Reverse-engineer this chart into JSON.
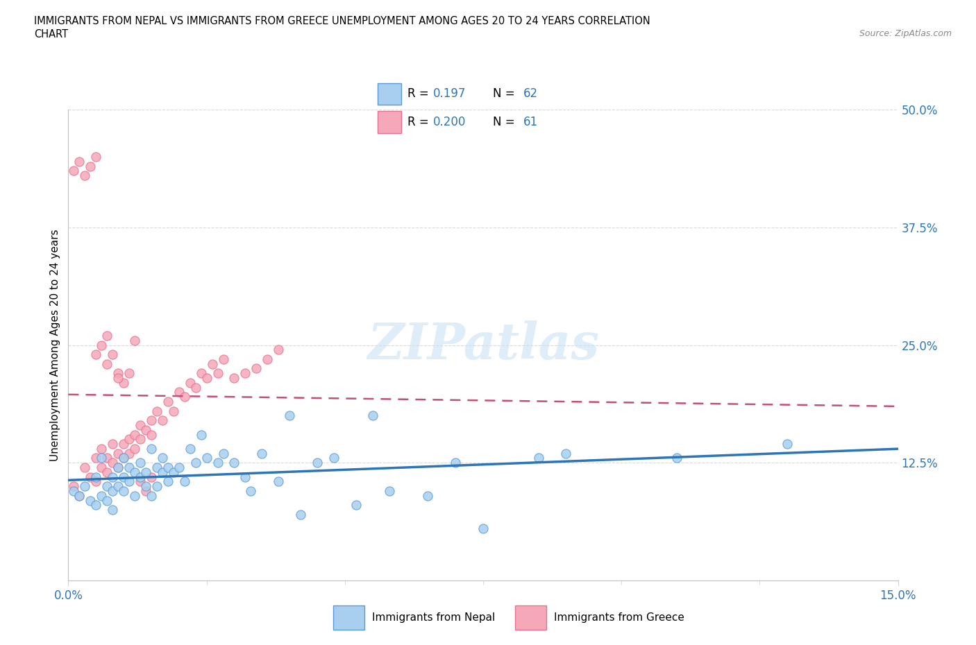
{
  "title_line1": "IMMIGRANTS FROM NEPAL VS IMMIGRANTS FROM GREECE UNEMPLOYMENT AMONG AGES 20 TO 24 YEARS CORRELATION",
  "title_line2": "CHART",
  "source": "Source: ZipAtlas.com",
  "ylabel": "Unemployment Among Ages 20 to 24 years",
  "xlim": [
    0.0,
    0.15
  ],
  "ylim": [
    0.0,
    0.5
  ],
  "yticks": [
    0.0,
    0.125,
    0.25,
    0.375,
    0.5
  ],
  "ytick_labels": [
    "",
    "12.5%",
    "25.0%",
    "37.5%",
    "50.0%"
  ],
  "xtick_labels": [
    "0.0%",
    "15.0%"
  ],
  "nepal_color": "#A8CFEE",
  "greece_color": "#F4A8B8",
  "nepal_edge_color": "#5B9BD5",
  "greece_edge_color": "#E87090",
  "nepal_line_color": "#2E75B6",
  "greece_line_color": "#C0507A",
  "r_n_color": "#2E75B6",
  "legend_R_nepal": "0.197",
  "legend_N_nepal": "62",
  "legend_R_greece": "0.200",
  "legend_N_greece": "61",
  "watermark": "ZIPatlas",
  "nepal_x": [
    0.001,
    0.002,
    0.003,
    0.004,
    0.005,
    0.005,
    0.006,
    0.006,
    0.007,
    0.007,
    0.008,
    0.008,
    0.008,
    0.009,
    0.009,
    0.01,
    0.01,
    0.01,
    0.011,
    0.011,
    0.012,
    0.012,
    0.013,
    0.013,
    0.014,
    0.014,
    0.015,
    0.015,
    0.016,
    0.016,
    0.017,
    0.017,
    0.018,
    0.018,
    0.019,
    0.02,
    0.021,
    0.022,
    0.023,
    0.024,
    0.025,
    0.027,
    0.028,
    0.03,
    0.032,
    0.033,
    0.035,
    0.038,
    0.04,
    0.042,
    0.045,
    0.048,
    0.052,
    0.055,
    0.058,
    0.065,
    0.07,
    0.075,
    0.085,
    0.09,
    0.11,
    0.13
  ],
  "nepal_y": [
    0.095,
    0.09,
    0.1,
    0.085,
    0.08,
    0.11,
    0.09,
    0.13,
    0.1,
    0.085,
    0.095,
    0.11,
    0.075,
    0.12,
    0.1,
    0.095,
    0.11,
    0.13,
    0.105,
    0.12,
    0.09,
    0.115,
    0.11,
    0.125,
    0.1,
    0.115,
    0.09,
    0.14,
    0.1,
    0.12,
    0.115,
    0.13,
    0.105,
    0.12,
    0.115,
    0.12,
    0.105,
    0.14,
    0.125,
    0.155,
    0.13,
    0.125,
    0.135,
    0.125,
    0.11,
    0.095,
    0.135,
    0.105,
    0.175,
    0.07,
    0.125,
    0.13,
    0.08,
    0.175,
    0.095,
    0.09,
    0.125,
    0.055,
    0.13,
    0.135,
    0.13,
    0.145
  ],
  "greece_x": [
    0.001,
    0.002,
    0.003,
    0.004,
    0.005,
    0.005,
    0.006,
    0.006,
    0.007,
    0.007,
    0.008,
    0.008,
    0.009,
    0.009,
    0.01,
    0.01,
    0.011,
    0.011,
    0.012,
    0.012,
    0.013,
    0.013,
    0.014,
    0.015,
    0.015,
    0.016,
    0.017,
    0.018,
    0.019,
    0.02,
    0.021,
    0.022,
    0.023,
    0.024,
    0.025,
    0.026,
    0.027,
    0.028,
    0.03,
    0.032,
    0.034,
    0.036,
    0.038,
    0.001,
    0.002,
    0.003,
    0.004,
    0.005,
    0.006,
    0.007,
    0.008,
    0.009,
    0.01,
    0.011,
    0.012,
    0.013,
    0.014,
    0.015,
    0.005,
    0.007,
    0.009
  ],
  "greece_y": [
    0.1,
    0.09,
    0.12,
    0.11,
    0.13,
    0.105,
    0.12,
    0.14,
    0.115,
    0.13,
    0.125,
    0.145,
    0.135,
    0.12,
    0.145,
    0.13,
    0.15,
    0.135,
    0.155,
    0.14,
    0.165,
    0.15,
    0.16,
    0.17,
    0.155,
    0.18,
    0.17,
    0.19,
    0.18,
    0.2,
    0.195,
    0.21,
    0.205,
    0.22,
    0.215,
    0.23,
    0.22,
    0.235,
    0.215,
    0.22,
    0.225,
    0.235,
    0.245,
    0.435,
    0.445,
    0.43,
    0.44,
    0.45,
    0.25,
    0.26,
    0.24,
    0.22,
    0.21,
    0.22,
    0.255,
    0.105,
    0.095,
    0.11,
    0.24,
    0.23,
    0.215
  ]
}
